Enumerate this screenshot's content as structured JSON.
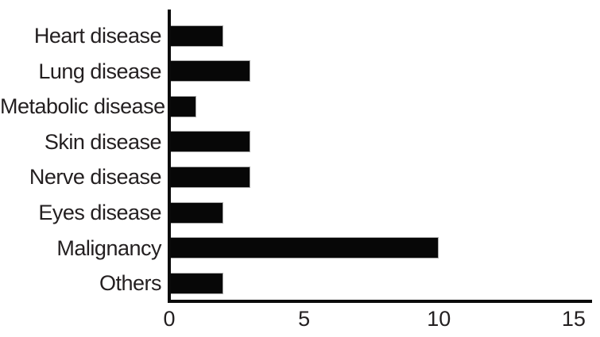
{
  "chart_data": {
    "type": "bar",
    "orientation": "horizontal",
    "title": "",
    "categories": [
      "Heart disease",
      "Lung disease",
      "Metabolic disease",
      "Skin disease",
      "Nerve disease",
      "Eyes disease",
      "Malignancy",
      "Others"
    ],
    "values": [
      2,
      3,
      1,
      3,
      3,
      2,
      10,
      2
    ],
    "xlabel": "",
    "ylabel": "",
    "xlim": [
      0,
      15
    ],
    "xticks": [
      0,
      5,
      10,
      15
    ],
    "grid": false,
    "legend": null,
    "bar_color": "#070707",
    "bar_edge_color": "#a8a8a8",
    "axis_color": "#0a0a0a",
    "text_color": "#231f20",
    "background": "#ffffff"
  }
}
